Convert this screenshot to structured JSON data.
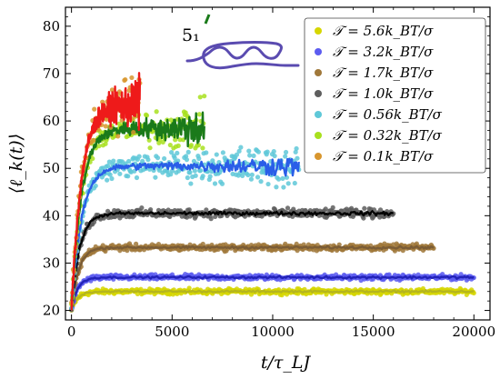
{
  "chart_data": {
    "type": "line",
    "xlabel": "t/τ_LJ",
    "ylabel": "⟨ℓ_k(t)⟩",
    "xlim": [
      -300,
      20800
    ],
    "ylim": [
      18,
      84
    ],
    "xticks": [
      0,
      5000,
      10000,
      15000,
      20000
    ],
    "yticks": [
      20,
      30,
      40,
      50,
      60,
      70,
      80
    ],
    "grid": false,
    "legend_position": "top-right",
    "annotation": "5₁",
    "series": [
      {
        "name": "𝒯 = 5.6k_BT/σ",
        "color": "#d6d600",
        "fit_color": "#b5b51e",
        "plateau": 24,
        "rise": 300,
        "t_end": 20000,
        "noise": 0.25,
        "scatter": 0.8
      },
      {
        "name": "𝒯 = 3.2k_BT/σ",
        "color": "#5c5cf0",
        "fit_color": "#2222b8",
        "plateau": 27,
        "rise": 300,
        "t_end": 20000,
        "noise": 0.3,
        "scatter": 0.8
      },
      {
        "name": "𝒯 = 1.7k_BT/σ",
        "color": "#a0783a",
        "fit_color": "#7a5c36",
        "plateau": 33.3,
        "rise": 350,
        "t_end": 18000,
        "noise": 0.3,
        "scatter": 1.0
      },
      {
        "name": "𝒯 = 1.0k_BT/σ",
        "color": "#5e5e5e",
        "fit_color": "#000000",
        "plateau": 40.5,
        "rise": 400,
        "t_end": 16000,
        "noise": 0.45,
        "scatter": 1.4
      },
      {
        "name": "𝒯 = 0.56k_BT/σ",
        "color": "#5fc8d8",
        "fit_color": "#2a5ee8",
        "plateau": 50.5,
        "rise": 500,
        "t_end": 11300,
        "noise": 0.8,
        "scatter": 2.0
      },
      {
        "name": "𝒯 = 0.32k_BT/σ",
        "color": "#a8e01e",
        "fit_color": "#1a7a1a",
        "plateau": 58.5,
        "rise": 500,
        "t_end": 6600,
        "noise": 1.4,
        "scatter": 2.2
      },
      {
        "name": "𝒯 = 0.1k_BT/σ",
        "color": "#d8962e",
        "fit_color": "#ee1a1a",
        "plateau": 63.5,
        "rise": 500,
        "t_end": 3400,
        "noise": 2.0,
        "scatter": 3.0
      }
    ]
  }
}
